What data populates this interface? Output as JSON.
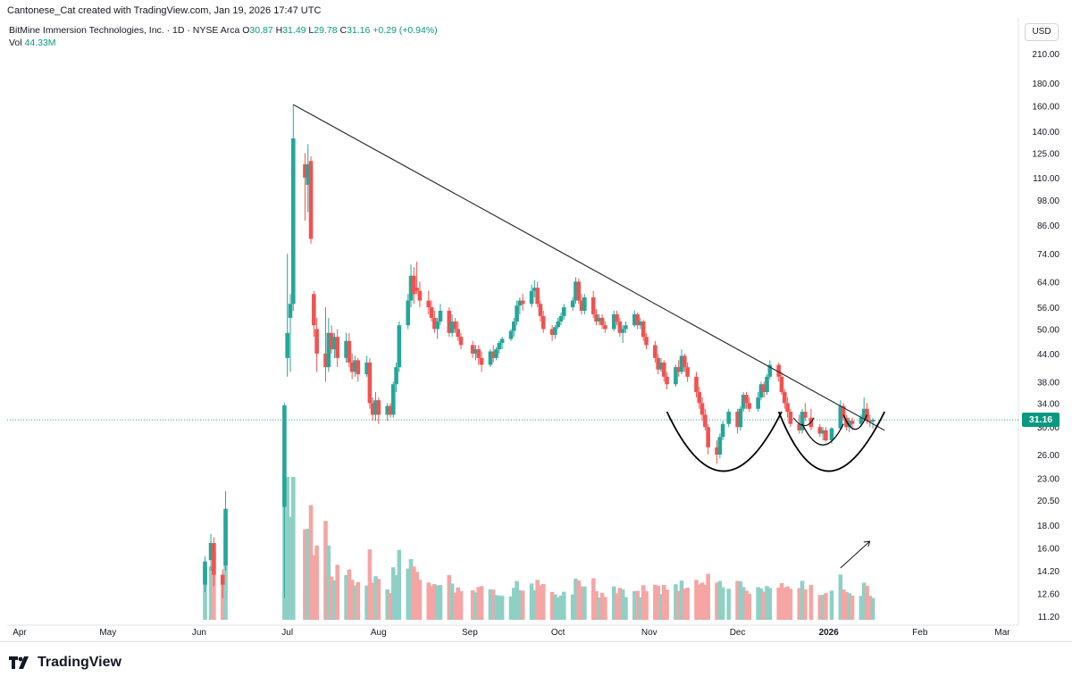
{
  "header": {
    "attribution": "Cantonese_Cat created with TradingView.com, Jan 19, 2026 17:47 UTC",
    "symbol": "BitMine Immersion Technologies, Inc. · 1D · NYSE Arca",
    "o_label": "O",
    "o_value": "30.87",
    "h_label": "H",
    "h_value": "31.49",
    "l_label": "L",
    "l_value": "29.78",
    "c_label": "C",
    "c_value": "31.16",
    "change": "+0.29 (+0.94%)",
    "vol_label": "Vol",
    "vol_value": "44.33M",
    "currency_button": "USD"
  },
  "footer": {
    "brand": "TradingView"
  },
  "colors": {
    "up": "#26a69a",
    "down": "#ef5350",
    "up_vol": "#8fd0c6",
    "down_vol": "#f5a5a3",
    "last_price": "#089981"
  },
  "chart_data": {
    "type": "candlestick",
    "title": "BitMine Immersion Technologies, Inc. · 1D · NYSE Arca",
    "y_scale": "log",
    "y_ticks": [
      "210.00",
      "180.00",
      "160.00",
      "140.00",
      "125.00",
      "110.00",
      "98.00",
      "86.00",
      "74.00",
      "64.00",
      "56.00",
      "50.00",
      "44.00",
      "38.00",
      "34.00",
      "30.00",
      "26.00",
      "23.00",
      "20.50",
      "18.00",
      "16.00",
      "14.20",
      "12.60",
      "11.20"
    ],
    "x_ticks": [
      "Apr",
      "May",
      "Jun",
      "Jul",
      "Aug",
      "Sep",
      "Oct",
      "Nov",
      "Dec",
      "2026",
      "Feb",
      "Mar"
    ],
    "last_price": "31.16",
    "ohlc": [
      {
        "date": "2025-06-03",
        "o": 13.2,
        "h": 15.3,
        "l": 12.7,
        "c": 14.9
      },
      {
        "date": "2025-06-05",
        "o": 15.0,
        "h": 17.2,
        "l": 14.2,
        "c": 16.4
      },
      {
        "date": "2025-06-06",
        "o": 16.4,
        "h": 16.9,
        "l": 13.1,
        "c": 13.9
      },
      {
        "date": "2025-06-09",
        "o": 13.9,
        "h": 14.3,
        "l": 12.3,
        "c": 13.2
      },
      {
        "date": "2025-06-10",
        "o": 14.6,
        "h": 21.5,
        "l": 14.2,
        "c": 19.6
      },
      {
        "date": "2025-06-30",
        "o": 19.8,
        "h": 34.0,
        "l": 12.3,
        "c": 33.6
      },
      {
        "date": "2025-07-01",
        "o": 43.0,
        "h": 74.0,
        "l": 39.0,
        "c": 49.0
      },
      {
        "date": "2025-07-02",
        "o": 53.0,
        "h": 60.0,
        "l": 40.0,
        "c": 57.0
      },
      {
        "date": "2025-07-03",
        "o": 57.0,
        "h": 161.0,
        "l": 55.0,
        "c": 135.0
      },
      {
        "date": "2025-07-07",
        "o": 118.0,
        "h": 125.0,
        "l": 88.0,
        "c": 110.0
      },
      {
        "date": "2025-07-08",
        "o": 106.0,
        "h": 131.0,
        "l": 92.0,
        "c": 118.0
      },
      {
        "date": "2025-07-09",
        "o": 120.0,
        "h": 123.0,
        "l": 78.0,
        "c": 80.0
      },
      {
        "date": "2025-07-10",
        "o": 60.0,
        "h": 61.0,
        "l": 48.0,
        "c": 51.0
      },
      {
        "date": "2025-07-11",
        "o": 50.0,
        "h": 53.0,
        "l": 40.0,
        "c": 44.0
      },
      {
        "date": "2025-07-14",
        "o": 44.0,
        "h": 56.0,
        "l": 38.0,
        "c": 41.0
      },
      {
        "date": "2025-07-15",
        "o": 41.0,
        "h": 53.0,
        "l": 40.0,
        "c": 49.0
      },
      {
        "date": "2025-07-16",
        "o": 49.0,
        "h": 51.0,
        "l": 44.0,
        "c": 45.0
      },
      {
        "date": "2025-07-17",
        "o": 45.0,
        "h": 49.0,
        "l": 43.0,
        "c": 48.0
      },
      {
        "date": "2025-07-18",
        "o": 48.0,
        "h": 50.0,
        "l": 41.0,
        "c": 43.0
      },
      {
        "date": "2025-07-21",
        "o": 43.0,
        "h": 49.0,
        "l": 42.0,
        "c": 47.0
      },
      {
        "date": "2025-07-22",
        "o": 47.0,
        "h": 49.0,
        "l": 41.0,
        "c": 42.0
      },
      {
        "date": "2025-07-23",
        "o": 42.0,
        "h": 44.0,
        "l": 38.5,
        "c": 40.0
      },
      {
        "date": "2025-07-24",
        "o": 40.0,
        "h": 43.5,
        "l": 39.0,
        "c": 42.5
      },
      {
        "date": "2025-07-25",
        "o": 42.5,
        "h": 43.0,
        "l": 38.0,
        "c": 39.5
      },
      {
        "date": "2025-07-28",
        "o": 39.5,
        "h": 43.5,
        "l": 39.0,
        "c": 42.0
      },
      {
        "date": "2025-07-29",
        "o": 42.0,
        "h": 43.0,
        "l": 33.0,
        "c": 34.0
      },
      {
        "date": "2025-07-30",
        "o": 34.0,
        "h": 35.0,
        "l": 31.0,
        "c": 32.0
      },
      {
        "date": "2025-07-31",
        "o": 32.0,
        "h": 36.0,
        "l": 31.0,
        "c": 34.5
      },
      {
        "date": "2025-08-01",
        "o": 34.5,
        "h": 35.0,
        "l": 30.5,
        "c": 32.0
      },
      {
        "date": "2025-08-04",
        "o": 32.0,
        "h": 34.0,
        "l": 31.0,
        "c": 33.5
      },
      {
        "date": "2025-08-05",
        "o": 33.5,
        "h": 34.0,
        "l": 31.5,
        "c": 32.0
      },
      {
        "date": "2025-08-06",
        "o": 32.0,
        "h": 38.0,
        "l": 31.5,
        "c": 37.5
      },
      {
        "date": "2025-08-07",
        "o": 37.5,
        "h": 42.0,
        "l": 36.0,
        "c": 41.0
      },
      {
        "date": "2025-08-08",
        "o": 41.0,
        "h": 52.0,
        "l": 40.0,
        "c": 51.0
      },
      {
        "date": "2025-08-11",
        "o": 51.0,
        "h": 60.0,
        "l": 50.0,
        "c": 58.0
      },
      {
        "date": "2025-08-12",
        "o": 58.0,
        "h": 70.0,
        "l": 56.0,
        "c": 66.0
      },
      {
        "date": "2025-08-13",
        "o": 66.0,
        "h": 69.0,
        "l": 57.0,
        "c": 60.0
      },
      {
        "date": "2025-08-14",
        "o": 62.0,
        "h": 71.0,
        "l": 60.0,
        "c": 61.0
      },
      {
        "date": "2025-08-15",
        "o": 61.0,
        "h": 64.0,
        "l": 56.0,
        "c": 58.0
      },
      {
        "date": "2025-08-18",
        "o": 58.0,
        "h": 61.0,
        "l": 54.0,
        "c": 56.0
      },
      {
        "date": "2025-08-19",
        "o": 56.0,
        "h": 58.0,
        "l": 52.0,
        "c": 53.0
      },
      {
        "date": "2025-08-20",
        "o": 53.0,
        "h": 55.0,
        "l": 49.0,
        "c": 50.0
      },
      {
        "date": "2025-08-21",
        "o": 50.0,
        "h": 53.0,
        "l": 47.5,
        "c": 52.0
      },
      {
        "date": "2025-08-22",
        "o": 52.0,
        "h": 57.0,
        "l": 51.0,
        "c": 55.0
      },
      {
        "date": "2025-08-25",
        "o": 55.0,
        "h": 56.0,
        "l": 48.0,
        "c": 49.0
      },
      {
        "date": "2025-08-26",
        "o": 49.0,
        "h": 54.0,
        "l": 48.0,
        "c": 52.0
      },
      {
        "date": "2025-08-27",
        "o": 52.0,
        "h": 53.0,
        "l": 49.0,
        "c": 50.0
      },
      {
        "date": "2025-08-28",
        "o": 50.0,
        "h": 52.0,
        "l": 47.0,
        "c": 48.0
      },
      {
        "date": "2025-08-29",
        "o": 48.0,
        "h": 49.0,
        "l": 45.0,
        "c": 46.0
      },
      {
        "date": "2025-09-02",
        "o": 46.0,
        "h": 47.0,
        "l": 43.0,
        "c": 44.0
      },
      {
        "date": "2025-09-03",
        "o": 44.0,
        "h": 46.0,
        "l": 42.5,
        "c": 45.0
      },
      {
        "date": "2025-09-04",
        "o": 45.0,
        "h": 46.0,
        "l": 41.5,
        "c": 43.0
      },
      {
        "date": "2025-09-05",
        "o": 43.0,
        "h": 44.5,
        "l": 40.0,
        "c": 41.5
      },
      {
        "date": "2025-09-08",
        "o": 41.5,
        "h": 45.0,
        "l": 41.0,
        "c": 44.5
      },
      {
        "date": "2025-09-09",
        "o": 44.5,
        "h": 46.0,
        "l": 42.0,
        "c": 43.0
      },
      {
        "date": "2025-09-10",
        "o": 43.0,
        "h": 45.5,
        "l": 42.5,
        "c": 45.0
      },
      {
        "date": "2025-09-11",
        "o": 45.0,
        "h": 47.0,
        "l": 44.0,
        "c": 46.5
      },
      {
        "date": "2025-09-12",
        "o": 46.5,
        "h": 48.0,
        "l": 45.0,
        "c": 47.5
      },
      {
        "date": "2025-09-15",
        "o": 47.5,
        "h": 50.0,
        "l": 47.0,
        "c": 49.5
      },
      {
        "date": "2025-09-16",
        "o": 49.5,
        "h": 53.0,
        "l": 48.0,
        "c": 52.0
      },
      {
        "date": "2025-09-17",
        "o": 52.0,
        "h": 58.0,
        "l": 51.0,
        "c": 56.5
      },
      {
        "date": "2025-09-18",
        "o": 56.5,
        "h": 59.0,
        "l": 54.0,
        "c": 58.0
      },
      {
        "date": "2025-09-19",
        "o": 58.0,
        "h": 60.0,
        "l": 55.0,
        "c": 57.0
      },
      {
        "date": "2025-09-22",
        "o": 57.0,
        "h": 63.0,
        "l": 56.0,
        "c": 61.0
      },
      {
        "date": "2025-09-23",
        "o": 61.0,
        "h": 64.5,
        "l": 59.0,
        "c": 62.0
      },
      {
        "date": "2025-09-24",
        "o": 62.0,
        "h": 64.0,
        "l": 56.0,
        "c": 57.0
      },
      {
        "date": "2025-09-25",
        "o": 57.0,
        "h": 58.0,
        "l": 52.0,
        "c": 53.5
      },
      {
        "date": "2025-09-26",
        "o": 53.5,
        "h": 55.0,
        "l": 49.0,
        "c": 50.0
      },
      {
        "date": "2025-09-29",
        "o": 50.0,
        "h": 51.0,
        "l": 47.0,
        "c": 48.5
      },
      {
        "date": "2025-09-30",
        "o": 48.5,
        "h": 51.0,
        "l": 47.5,
        "c": 50.5
      },
      {
        "date": "2025-10-01",
        "o": 50.5,
        "h": 53.0,
        "l": 50.0,
        "c": 52.0
      },
      {
        "date": "2025-10-02",
        "o": 52.0,
        "h": 54.5,
        "l": 51.0,
        "c": 53.5
      },
      {
        "date": "2025-10-03",
        "o": 53.5,
        "h": 57.0,
        "l": 52.5,
        "c": 56.0
      },
      {
        "date": "2025-10-06",
        "o": 56.0,
        "h": 59.0,
        "l": 55.0,
        "c": 58.0
      },
      {
        "date": "2025-10-07",
        "o": 58.0,
        "h": 65.5,
        "l": 57.0,
        "c": 64.0
      },
      {
        "date": "2025-10-08",
        "o": 64.0,
        "h": 65.0,
        "l": 57.0,
        "c": 58.0
      },
      {
        "date": "2025-10-09",
        "o": 58.0,
        "h": 60.0,
        "l": 54.0,
        "c": 55.0
      },
      {
        "date": "2025-10-10",
        "o": 55.0,
        "h": 60.0,
        "l": 54.0,
        "c": 59.0
      },
      {
        "date": "2025-10-13",
        "o": 59.0,
        "h": 61.0,
        "l": 53.0,
        "c": 54.0
      },
      {
        "date": "2025-10-14",
        "o": 54.0,
        "h": 55.5,
        "l": 51.0,
        "c": 52.0
      },
      {
        "date": "2025-10-15",
        "o": 52.0,
        "h": 54.0,
        "l": 51.0,
        "c": 53.0
      },
      {
        "date": "2025-10-16",
        "o": 53.0,
        "h": 54.0,
        "l": 50.0,
        "c": 51.0
      },
      {
        "date": "2025-10-17",
        "o": 51.0,
        "h": 52.0,
        "l": 49.0,
        "c": 50.0
      },
      {
        "date": "2025-10-20",
        "o": 50.0,
        "h": 55.0,
        "l": 49.5,
        "c": 54.0
      },
      {
        "date": "2025-10-21",
        "o": 54.0,
        "h": 55.0,
        "l": 51.0,
        "c": 52.0
      },
      {
        "date": "2025-10-22",
        "o": 52.0,
        "h": 53.0,
        "l": 48.0,
        "c": 49.0
      },
      {
        "date": "2025-10-23",
        "o": 49.0,
        "h": 51.0,
        "l": 46.5,
        "c": 50.0
      },
      {
        "date": "2025-10-24",
        "o": 50.0,
        "h": 52.0,
        "l": 49.0,
        "c": 51.0
      },
      {
        "date": "2025-10-27",
        "o": 51.0,
        "h": 55.0,
        "l": 50.5,
        "c": 54.0
      },
      {
        "date": "2025-10-28",
        "o": 54.0,
        "h": 54.5,
        "l": 50.0,
        "c": 51.0
      },
      {
        "date": "2025-10-29",
        "o": 51.0,
        "h": 53.0,
        "l": 50.0,
        "c": 52.0
      },
      {
        "date": "2025-10-30",
        "o": 52.0,
        "h": 52.5,
        "l": 47.0,
        "c": 48.0
      },
      {
        "date": "2025-10-31",
        "o": 48.0,
        "h": 49.0,
        "l": 45.0,
        "c": 46.0
      },
      {
        "date": "2025-11-03",
        "o": 46.0,
        "h": 47.0,
        "l": 42.0,
        "c": 43.0
      },
      {
        "date": "2025-11-04",
        "o": 43.0,
        "h": 44.0,
        "l": 39.5,
        "c": 40.5
      },
      {
        "date": "2025-11-05",
        "o": 40.5,
        "h": 43.0,
        "l": 40.0,
        "c": 42.0
      },
      {
        "date": "2025-11-06",
        "o": 42.0,
        "h": 42.5,
        "l": 38.0,
        "c": 39.0
      },
      {
        "date": "2025-11-07",
        "o": 39.0,
        "h": 40.0,
        "l": 36.5,
        "c": 37.5
      },
      {
        "date": "2025-11-10",
        "o": 37.5,
        "h": 41.5,
        "l": 37.0,
        "c": 41.0
      },
      {
        "date": "2025-11-11",
        "o": 41.0,
        "h": 42.5,
        "l": 39.0,
        "c": 40.0
      },
      {
        "date": "2025-11-12",
        "o": 40.0,
        "h": 45.0,
        "l": 39.5,
        "c": 43.5
      },
      {
        "date": "2025-11-13",
        "o": 43.5,
        "h": 44.0,
        "l": 40.0,
        "c": 41.0
      },
      {
        "date": "2025-11-14",
        "o": 41.0,
        "h": 42.0,
        "l": 38.0,
        "c": 39.0
      },
      {
        "date": "2025-11-17",
        "o": 39.0,
        "h": 40.0,
        "l": 35.0,
        "c": 36.0
      },
      {
        "date": "2025-11-18",
        "o": 36.0,
        "h": 37.0,
        "l": 33.0,
        "c": 34.0
      },
      {
        "date": "2025-11-19",
        "o": 34.0,
        "h": 35.0,
        "l": 31.0,
        "c": 32.0
      },
      {
        "date": "2025-11-20",
        "o": 32.0,
        "h": 33.0,
        "l": 29.5,
        "c": 30.0
      },
      {
        "date": "2025-11-21",
        "o": 30.0,
        "h": 30.5,
        "l": 26.0,
        "c": 27.0
      },
      {
        "date": "2025-11-24",
        "o": 27.0,
        "h": 28.0,
        "l": 24.8,
        "c": 26.0
      },
      {
        "date": "2025-11-25",
        "o": 26.0,
        "h": 29.0,
        "l": 25.5,
        "c": 28.5
      },
      {
        "date": "2025-11-26",
        "o": 28.5,
        "h": 31.0,
        "l": 28.0,
        "c": 30.5
      },
      {
        "date": "2025-11-28",
        "o": 30.5,
        "h": 33.0,
        "l": 30.0,
        "c": 32.5
      },
      {
        "date": "2025-12-01",
        "o": 32.5,
        "h": 33.0,
        "l": 29.0,
        "c": 30.0
      },
      {
        "date": "2025-12-02",
        "o": 30.0,
        "h": 33.5,
        "l": 29.5,
        "c": 33.0
      },
      {
        "date": "2025-12-03",
        "o": 33.0,
        "h": 36.0,
        "l": 32.5,
        "c": 35.5
      },
      {
        "date": "2025-12-04",
        "o": 35.5,
        "h": 36.0,
        "l": 33.0,
        "c": 34.0
      },
      {
        "date": "2025-12-05",
        "o": 34.0,
        "h": 35.0,
        "l": 32.5,
        "c": 33.0
      },
      {
        "date": "2025-12-08",
        "o": 33.0,
        "h": 36.0,
        "l": 32.5,
        "c": 35.0
      },
      {
        "date": "2025-12-09",
        "o": 35.0,
        "h": 38.0,
        "l": 34.5,
        "c": 37.5
      },
      {
        "date": "2025-12-10",
        "o": 37.5,
        "h": 38.0,
        "l": 35.0,
        "c": 36.0
      },
      {
        "date": "2025-12-11",
        "o": 36.0,
        "h": 39.5,
        "l": 35.5,
        "c": 39.0
      },
      {
        "date": "2025-12-12",
        "o": 39.0,
        "h": 42.5,
        "l": 38.5,
        "c": 41.5
      },
      {
        "date": "2025-12-15",
        "o": 41.5,
        "h": 42.0,
        "l": 38.0,
        "c": 39.0
      },
      {
        "date": "2025-12-16",
        "o": 39.0,
        "h": 40.0,
        "l": 35.5,
        "c": 36.0
      },
      {
        "date": "2025-12-17",
        "o": 36.0,
        "h": 36.5,
        "l": 33.0,
        "c": 34.0
      },
      {
        "date": "2025-12-18",
        "o": 34.0,
        "h": 35.0,
        "l": 31.5,
        "c": 32.5
      },
      {
        "date": "2025-12-19",
        "o": 32.5,
        "h": 33.0,
        "l": 30.0,
        "c": 30.5
      },
      {
        "date": "2025-12-22",
        "o": 30.5,
        "h": 32.0,
        "l": 29.0,
        "c": 29.5
      },
      {
        "date": "2025-12-23",
        "o": 29.5,
        "h": 33.0,
        "l": 29.0,
        "c": 32.5
      },
      {
        "date": "2025-12-24",
        "o": 32.5,
        "h": 34.0,
        "l": 31.0,
        "c": 31.5
      },
      {
        "date": "2025-12-26",
        "o": 31.5,
        "h": 33.0,
        "l": 29.5,
        "c": 30.0
      },
      {
        "date": "2025-12-29",
        "o": 30.0,
        "h": 30.5,
        "l": 28.5,
        "c": 29.0
      },
      {
        "date": "2025-12-30",
        "o": 29.0,
        "h": 30.0,
        "l": 28.0,
        "c": 29.5
      },
      {
        "date": "2025-12-31",
        "o": 29.5,
        "h": 30.0,
        "l": 27.8,
        "c": 28.0
      },
      {
        "date": "2026-01-02",
        "o": 28.0,
        "h": 30.0,
        "l": 27.5,
        "c": 29.8
      },
      {
        "date": "2026-01-05",
        "o": 29.8,
        "h": 34.5,
        "l": 29.5,
        "c": 33.5
      },
      {
        "date": "2026-01-06",
        "o": 33.5,
        "h": 34.0,
        "l": 31.0,
        "c": 31.5
      },
      {
        "date": "2026-01-07",
        "o": 31.5,
        "h": 32.0,
        "l": 29.5,
        "c": 30.0
      },
      {
        "date": "2026-01-08",
        "o": 30.0,
        "h": 31.5,
        "l": 29.2,
        "c": 31.0
      },
      {
        "date": "2026-01-09",
        "o": 31.0,
        "h": 31.5,
        "l": 29.5,
        "c": 30.5
      },
      {
        "date": "2026-01-12",
        "o": 30.5,
        "h": 32.0,
        "l": 30.0,
        "c": 31.5
      },
      {
        "date": "2026-01-13",
        "o": 31.5,
        "h": 35.0,
        "l": 31.0,
        "c": 33.0
      },
      {
        "date": "2026-01-14",
        "o": 33.0,
        "h": 34.0,
        "l": 30.5,
        "c": 31.0
      },
      {
        "date": "2026-01-15",
        "o": 31.0,
        "h": 32.0,
        "l": 30.0,
        "c": 30.9
      },
      {
        "date": "2026-01-16",
        "o": 30.87,
        "h": 31.49,
        "l": 29.78,
        "c": 31.16
      }
    ],
    "volume_note": "volume bars shown beneath price; latest volume 44.33M",
    "annotations": {
      "trendline": {
        "from": {
          "date": "2025-07-03",
          "price": 161.0
        },
        "to": {
          "date": "2026-01-20",
          "price": 29.5
        }
      },
      "patterns": "cup-shaped arcs drawn under Nov–Jan lows with an upward arrow near the latest bars"
    },
    "grid": false
  }
}
